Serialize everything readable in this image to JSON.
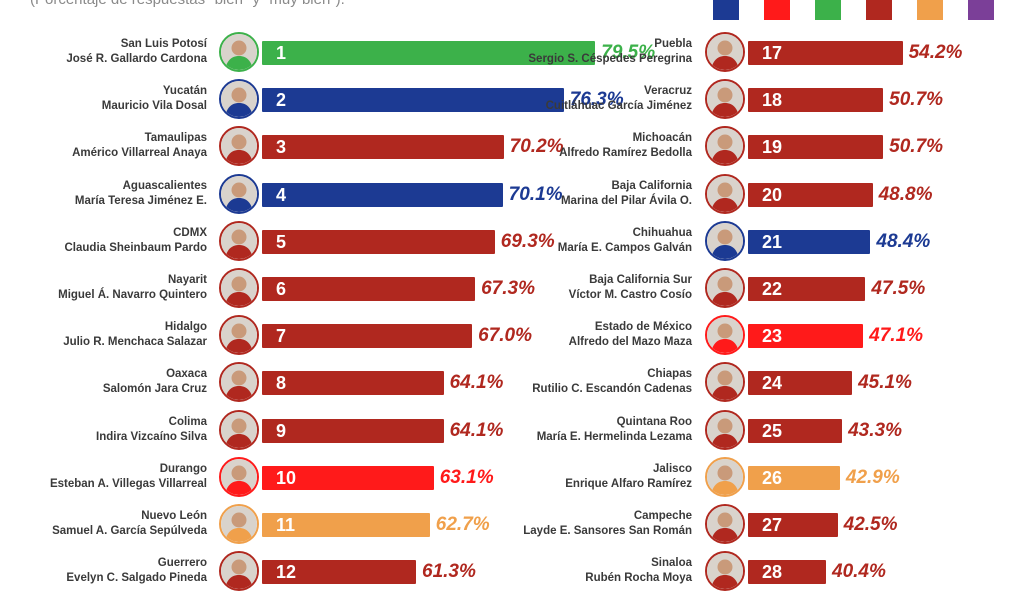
{
  "header": {
    "subtitle": "(Porcentaje de respuestas \"bien\" y \"muy bien\")."
  },
  "legend_colors": [
    "#1c3a93",
    "#ff1a1a",
    "#3cb14a",
    "#b0281f",
    "#f0a04b",
    "#7b3f98"
  ],
  "chart_data": {
    "type": "bar",
    "orientation": "horizontal",
    "xlim": [
      0,
      100
    ],
    "series": [
      {
        "values": [
          {
            "rank": "1",
            "state": "San Luis Potosí",
            "name": "José R. Gallardo Cardona",
            "value": 79.5,
            "label": "79.5%",
            "color": "#3cb14a"
          },
          {
            "rank": "2",
            "state": "Yucatán",
            "name": "Mauricio Vila Dosal",
            "value": 76.3,
            "label": "76.3%",
            "color": "#1c3a93"
          },
          {
            "rank": "3",
            "state": "Tamaulipas",
            "name": "Américo Villarreal Anaya",
            "value": 70.2,
            "label": "70.2%",
            "color": "#b0281f"
          },
          {
            "rank": "4",
            "state": "Aguascalientes",
            "name": "María Teresa Jiménez E.",
            "value": 70.1,
            "label": "70.1%",
            "color": "#1c3a93"
          },
          {
            "rank": "5",
            "state": "CDMX",
            "name": "Claudia Sheinbaum Pardo",
            "value": 69.3,
            "label": "69.3%",
            "color": "#b0281f"
          },
          {
            "rank": "6",
            "state": "Nayarit",
            "name": "Miguel Á. Navarro Quintero",
            "value": 67.3,
            "label": "67.3%",
            "color": "#b0281f"
          },
          {
            "rank": "7",
            "state": "Hidalgo",
            "name": "Julio R. Menchaca Salazar",
            "value": 67.0,
            "label": "67.0%",
            "color": "#b0281f"
          },
          {
            "rank": "8",
            "state": "Oaxaca",
            "name": "Salomón Jara Cruz",
            "value": 64.1,
            "label": "64.1%",
            "color": "#b0281f"
          },
          {
            "rank": "9",
            "state": "Colima",
            "name": "Indira Vizcaíno Silva",
            "value": 64.1,
            "label": "64.1%",
            "color": "#b0281f"
          },
          {
            "rank": "10",
            "state": "Durango",
            "name": "Esteban A. Villegas Villarreal",
            "value": 63.1,
            "label": "63.1%",
            "color": "#ff1a1a"
          },
          {
            "rank": "11",
            "state": "Nuevo León",
            "name": "Samuel A. García Sepúlveda",
            "value": 62.7,
            "label": "62.7%",
            "color": "#f0a04b"
          },
          {
            "rank": "12",
            "state": "Guerrero",
            "name": "Evelyn C. Salgado Pineda",
            "value": 61.3,
            "label": "61.3%",
            "color": "#b0281f"
          }
        ]
      },
      {
        "values": [
          {
            "rank": "17",
            "state": "Puebla",
            "name": "Sergio S. Céspedes Peregrina",
            "value": 54.2,
            "label": "54.2%",
            "color": "#b0281f"
          },
          {
            "rank": "18",
            "state": "Veracruz",
            "name": "Cuitláhuac García Jiménez",
            "value": 50.7,
            "label": "50.7%",
            "color": "#b0281f"
          },
          {
            "rank": "19",
            "state": "Michoacán",
            "name": "Alfredo Ramírez Bedolla",
            "value": 50.7,
            "label": "50.7%",
            "color": "#b0281f"
          },
          {
            "rank": "20",
            "state": "Baja California",
            "name": "Marina del Pilar Ávila O.",
            "value": 48.8,
            "label": "48.8%",
            "color": "#b0281f"
          },
          {
            "rank": "21",
            "state": "Chihuahua",
            "name": "María E. Campos Galván",
            "value": 48.4,
            "label": "48.4%",
            "color": "#1c3a93"
          },
          {
            "rank": "22",
            "state": "Baja California Sur",
            "name": "Víctor M. Castro Cosío",
            "value": 47.5,
            "label": "47.5%",
            "color": "#b0281f"
          },
          {
            "rank": "23",
            "state": "Estado de México",
            "name": "Alfredo del Mazo Maza",
            "value": 47.1,
            "label": "47.1%",
            "color": "#ff1a1a"
          },
          {
            "rank": "24",
            "state": "Chiapas",
            "name": "Rutilio C. Escandón Cadenas",
            "value": 45.1,
            "label": "45.1%",
            "color": "#b0281f"
          },
          {
            "rank": "25",
            "state": "Quintana Roo",
            "name": "María E. Hermelinda Lezama",
            "value": 43.3,
            "label": "43.3%",
            "color": "#b0281f"
          },
          {
            "rank": "26",
            "state": "Jalisco",
            "name": "Enrique Alfaro Ramírez",
            "value": 42.9,
            "label": "42.9%",
            "color": "#f0a04b"
          },
          {
            "rank": "27",
            "state": "Campeche",
            "name": "Layde E. Sansores San Román",
            "value": 42.5,
            "label": "42.5%",
            "color": "#b0281f"
          },
          {
            "rank": "28",
            "state": "Sinaloa",
            "name": "Rubén Rocha Moya",
            "value": 40.4,
            "label": "40.4%",
            "color": "#b0281f"
          }
        ]
      }
    ]
  }
}
